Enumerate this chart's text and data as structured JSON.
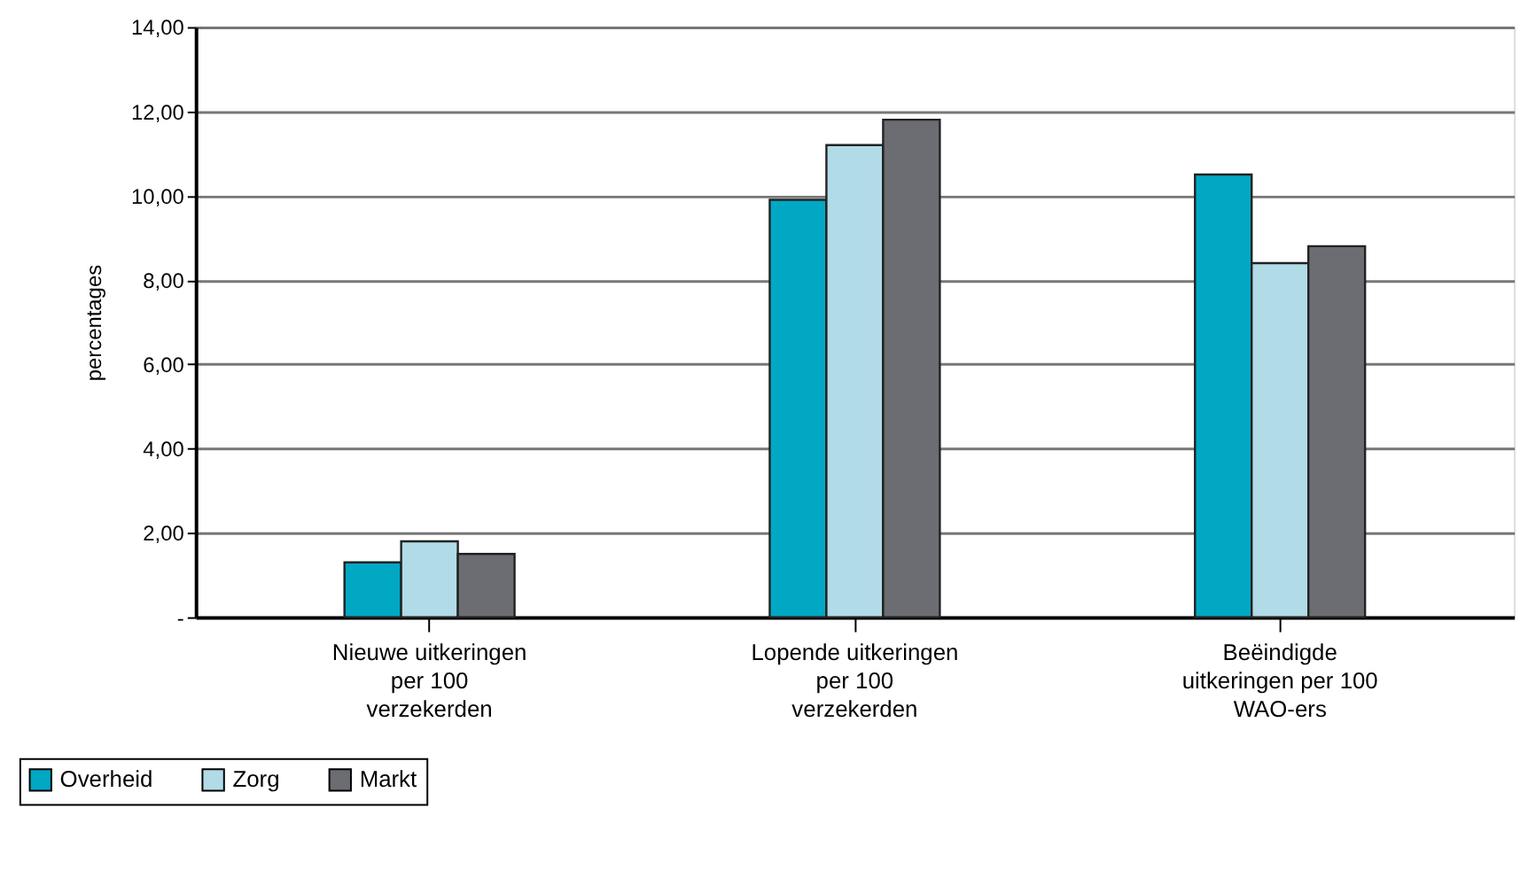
{
  "chart_data": {
    "type": "bar",
    "ylabel": "percentages",
    "categories": [
      "Nieuwe uitkeringen\nper 100\nverzekerden",
      "Lopende uitkeringen\nper 100\nverzekerden",
      "Beëindigde\nuitkeringen per 100\nWAO-ers"
    ],
    "series": [
      {
        "name": "Overheid",
        "color": "#00a8c4",
        "values": [
          1.3,
          9.9,
          10.5
        ]
      },
      {
        "name": "Zorg",
        "color": "#b2dbe8",
        "values": [
          1.8,
          11.2,
          8.4
        ]
      },
      {
        "name": "Markt",
        "color": "#6b6d72",
        "values": [
          1.5,
          11.8,
          8.8
        ]
      }
    ],
    "ylim": [
      0,
      14
    ],
    "yticks": [
      {
        "value": 0,
        "label": "-"
      },
      {
        "value": 2,
        "label": "2,00"
      },
      {
        "value": 4,
        "label": "4,00"
      },
      {
        "value": 6,
        "label": "6,00"
      },
      {
        "value": 8,
        "label": "8,00"
      },
      {
        "value": 10,
        "label": "10,00"
      },
      {
        "value": 12,
        "label": "12,00"
      },
      {
        "value": 14,
        "label": "14,00"
      }
    ],
    "grid": "y",
    "legend": "bottom left"
  }
}
